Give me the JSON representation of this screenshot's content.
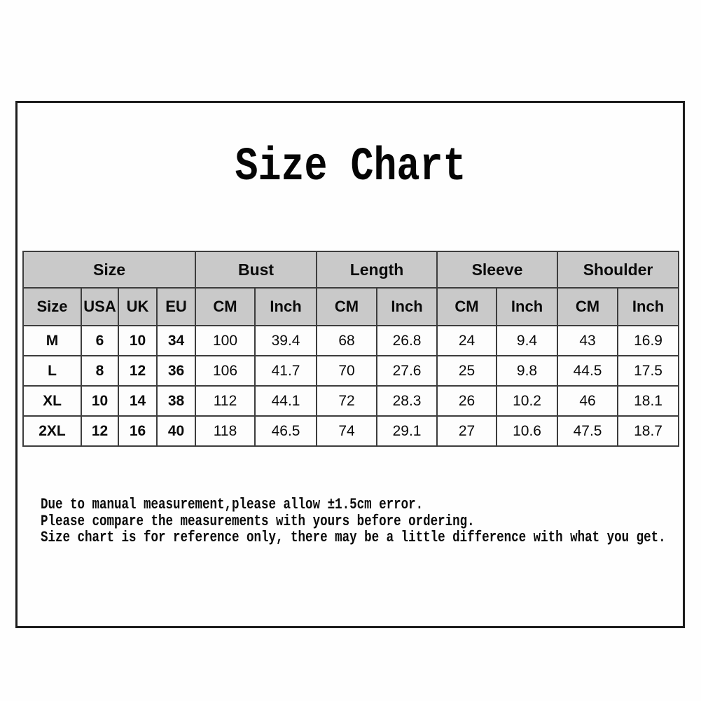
{
  "title": "Size Chart",
  "table": {
    "groups": [
      {
        "label": "Size",
        "span": 4
      },
      {
        "label": "Bust",
        "span": 2
      },
      {
        "label": "Length",
        "span": 2
      },
      {
        "label": "Sleeve",
        "span": 2
      },
      {
        "label": "Shoulder",
        "span": 2
      }
    ],
    "columns": [
      "Size",
      "USA",
      "UK",
      "EU",
      "CM",
      "Inch",
      "CM",
      "Inch",
      "CM",
      "Inch",
      "CM",
      "Inch"
    ],
    "rows": [
      [
        "M",
        "6",
        "10",
        "34",
        "100",
        "39.4",
        "68",
        "26.8",
        "24",
        "9.4",
        "43",
        "16.9"
      ],
      [
        "L",
        "8",
        "12",
        "36",
        "106",
        "41.7",
        "70",
        "27.6",
        "25",
        "9.8",
        "44.5",
        "17.5"
      ],
      [
        "XL",
        "10",
        "14",
        "38",
        "112",
        "44.1",
        "72",
        "28.3",
        "26",
        "10.2",
        "46",
        "18.1"
      ],
      [
        "2XL",
        "12",
        "16",
        "40",
        "118",
        "46.5",
        "74",
        "29.1",
        "27",
        "10.6",
        "47.5",
        "18.7"
      ]
    ]
  },
  "notes": [
    "Due to manual measurement,please allow ±1.5cm error.",
    "Please compare the measurements with yours before ordering.",
    "Size chart is for reference only, there may be a little difference with what you get."
  ],
  "colors": {
    "header_bg": "#c9c9c9",
    "cell_bg": "#fdfdfd",
    "table_border": "#3d3d3d",
    "frame_border": "#1c1c1c",
    "text": "#0a0a0a"
  }
}
